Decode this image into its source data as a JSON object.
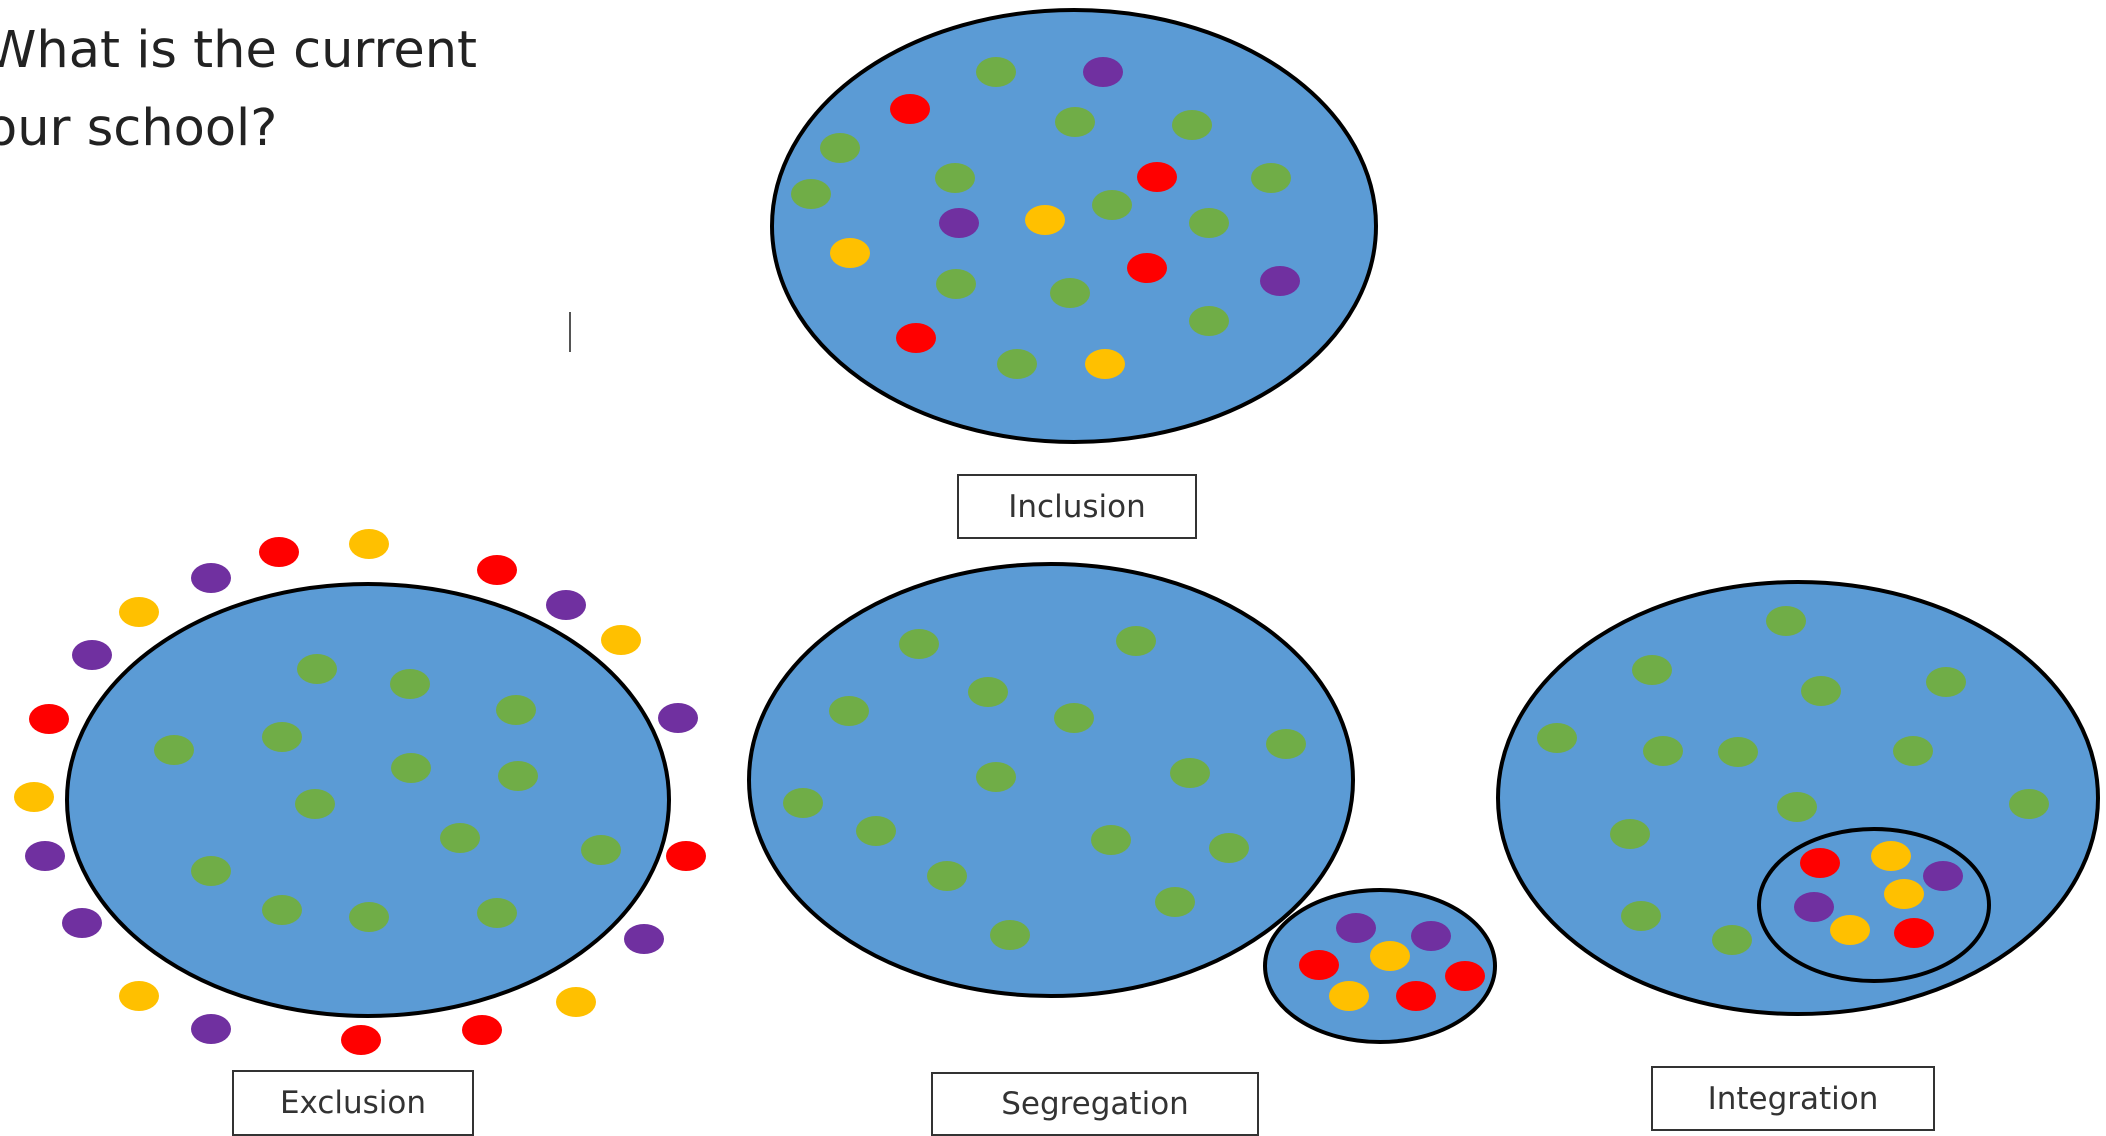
{
  "question": {
    "line1": "What is the current",
    "line2": "our school?"
  },
  "colors": {
    "circle_fill": "#5b9bd5",
    "circle_stroke": "#000000",
    "green": "#70ad47",
    "red": "#ff0000",
    "purple": "#7030a0",
    "yellow": "#ffc000"
  },
  "panels": {
    "inclusion": {
      "label": "Inclusion"
    },
    "exclusion": {
      "label": "Exclusion"
    },
    "segregation": {
      "label": "Segregation"
    },
    "integration": {
      "label": "Integration"
    }
  }
}
